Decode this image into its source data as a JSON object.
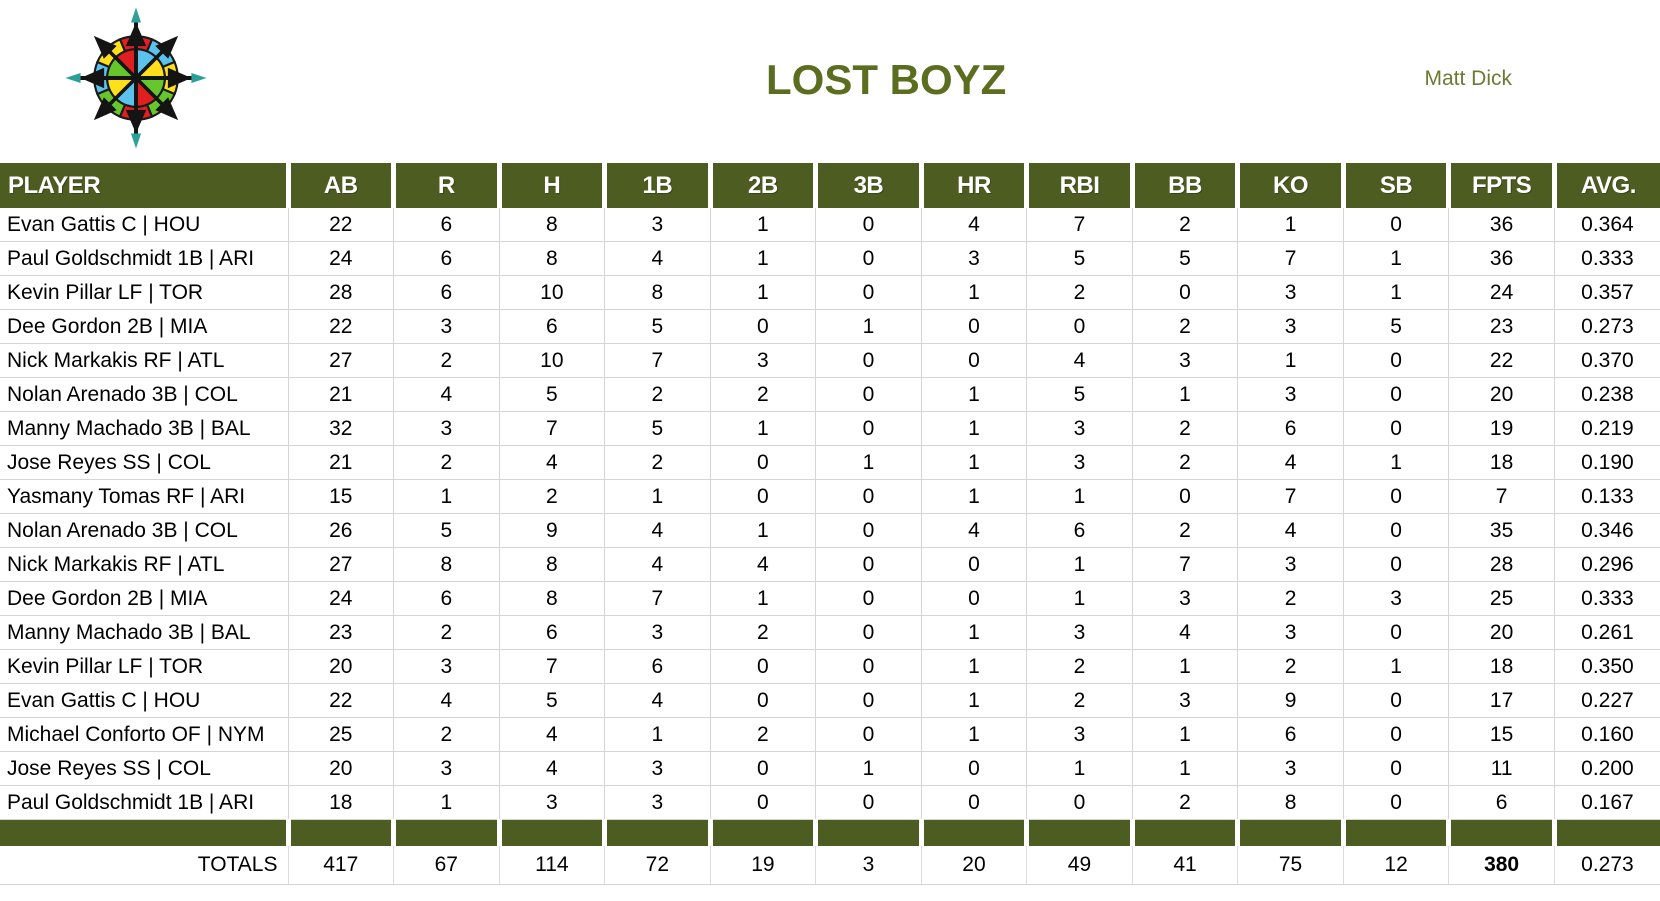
{
  "header": {
    "title": "LOST BOYZ",
    "owner": "Matt Dick",
    "logo": "compass-rose-logo"
  },
  "colors": {
    "accent_green": "#4d5d21",
    "title_green": "#5b6e20",
    "owner_green": "#6e7a33",
    "gridline": "#d4d4d4",
    "header_text": "#ffffff",
    "logo_red": "#e02020",
    "logo_blue": "#5bc2ee",
    "logo_yellow": "#ffe01a",
    "logo_green": "#66c72c",
    "logo_teal": "#2d9f9b"
  },
  "table": {
    "columns": [
      "PLAYER",
      "AB",
      "R",
      "H",
      "1B",
      "2B",
      "3B",
      "HR",
      "RBI",
      "BB",
      "KO",
      "SB",
      "FPTS",
      "AVG."
    ],
    "rows": [
      {
        "player": "Evan Gattis C | HOU",
        "stats": [
          "22",
          "6",
          "8",
          "3",
          "1",
          "0",
          "4",
          "7",
          "2",
          "1",
          "0",
          "36",
          "0.364"
        ]
      },
      {
        "player": "Paul Goldschmidt 1B | ARI",
        "stats": [
          "24",
          "6",
          "8",
          "4",
          "1",
          "0",
          "3",
          "5",
          "5",
          "7",
          "1",
          "36",
          "0.333"
        ]
      },
      {
        "player": "Kevin Pillar LF | TOR",
        "stats": [
          "28",
          "6",
          "10",
          "8",
          "1",
          "0",
          "1",
          "2",
          "0",
          "3",
          "1",
          "24",
          "0.357"
        ]
      },
      {
        "player": "Dee Gordon 2B | MIA",
        "stats": [
          "22",
          "3",
          "6",
          "5",
          "0",
          "1",
          "0",
          "0",
          "2",
          "3",
          "5",
          "23",
          "0.273"
        ]
      },
      {
        "player": "Nick Markakis RF | ATL",
        "stats": [
          "27",
          "2",
          "10",
          "7",
          "3",
          "0",
          "0",
          "4",
          "3",
          "1",
          "0",
          "22",
          "0.370"
        ]
      },
      {
        "player": "Nolan Arenado 3B | COL",
        "stats": [
          "21",
          "4",
          "5",
          "2",
          "2",
          "0",
          "1",
          "5",
          "1",
          "3",
          "0",
          "20",
          "0.238"
        ]
      },
      {
        "player": "Manny Machado 3B | BAL",
        "stats": [
          "32",
          "3",
          "7",
          "5",
          "1",
          "0",
          "1",
          "3",
          "2",
          "6",
          "0",
          "19",
          "0.219"
        ]
      },
      {
        "player": "Jose Reyes SS | COL",
        "stats": [
          "21",
          "2",
          "4",
          "2",
          "0",
          "1",
          "1",
          "3",
          "2",
          "4",
          "1",
          "18",
          "0.190"
        ]
      },
      {
        "player": "Yasmany Tomas RF | ARI",
        "stats": [
          "15",
          "1",
          "2",
          "1",
          "0",
          "0",
          "1",
          "1",
          "0",
          "7",
          "0",
          "7",
          "0.133"
        ]
      },
      {
        "player": "Nolan Arenado 3B | COL",
        "stats": [
          "26",
          "5",
          "9",
          "4",
          "1",
          "0",
          "4",
          "6",
          "2",
          "4",
          "0",
          "35",
          "0.346"
        ]
      },
      {
        "player": "Nick Markakis RF | ATL",
        "stats": [
          "27",
          "8",
          "8",
          "4",
          "4",
          "0",
          "0",
          "1",
          "7",
          "3",
          "0",
          "28",
          "0.296"
        ]
      },
      {
        "player": "Dee Gordon 2B | MIA",
        "stats": [
          "24",
          "6",
          "8",
          "7",
          "1",
          "0",
          "0",
          "1",
          "3",
          "2",
          "3",
          "25",
          "0.333"
        ]
      },
      {
        "player": "Manny Machado 3B | BAL",
        "stats": [
          "23",
          "2",
          "6",
          "3",
          "2",
          "0",
          "1",
          "3",
          "4",
          "3",
          "0",
          "20",
          "0.261"
        ]
      },
      {
        "player": "Kevin Pillar LF | TOR",
        "stats": [
          "20",
          "3",
          "7",
          "6",
          "0",
          "0",
          "1",
          "2",
          "1",
          "2",
          "1",
          "18",
          "0.350"
        ]
      },
      {
        "player": "Evan Gattis C | HOU",
        "stats": [
          "22",
          "4",
          "5",
          "4",
          "0",
          "0",
          "1",
          "2",
          "3",
          "9",
          "0",
          "17",
          "0.227"
        ]
      },
      {
        "player": "Michael Conforto OF | NYM",
        "stats": [
          "25",
          "2",
          "4",
          "1",
          "2",
          "0",
          "1",
          "3",
          "1",
          "6",
          "0",
          "15",
          "0.160"
        ]
      },
      {
        "player": "Jose Reyes SS | COL",
        "stats": [
          "20",
          "3",
          "4",
          "3",
          "0",
          "1",
          "0",
          "1",
          "1",
          "3",
          "0",
          "11",
          "0.200"
        ]
      },
      {
        "player": "Paul Goldschmidt 1B | ARI",
        "stats": [
          "18",
          "1",
          "3",
          "3",
          "0",
          "0",
          "0",
          "0",
          "2",
          "8",
          "0",
          "6",
          "0.167"
        ]
      }
    ],
    "totals": {
      "label": "TOTALS",
      "values": [
        "417",
        "67",
        "114",
        "72",
        "19",
        "3",
        "20",
        "49",
        "41",
        "75",
        "12",
        "380",
        "0.273"
      ],
      "bold_value_index": 11
    }
  }
}
